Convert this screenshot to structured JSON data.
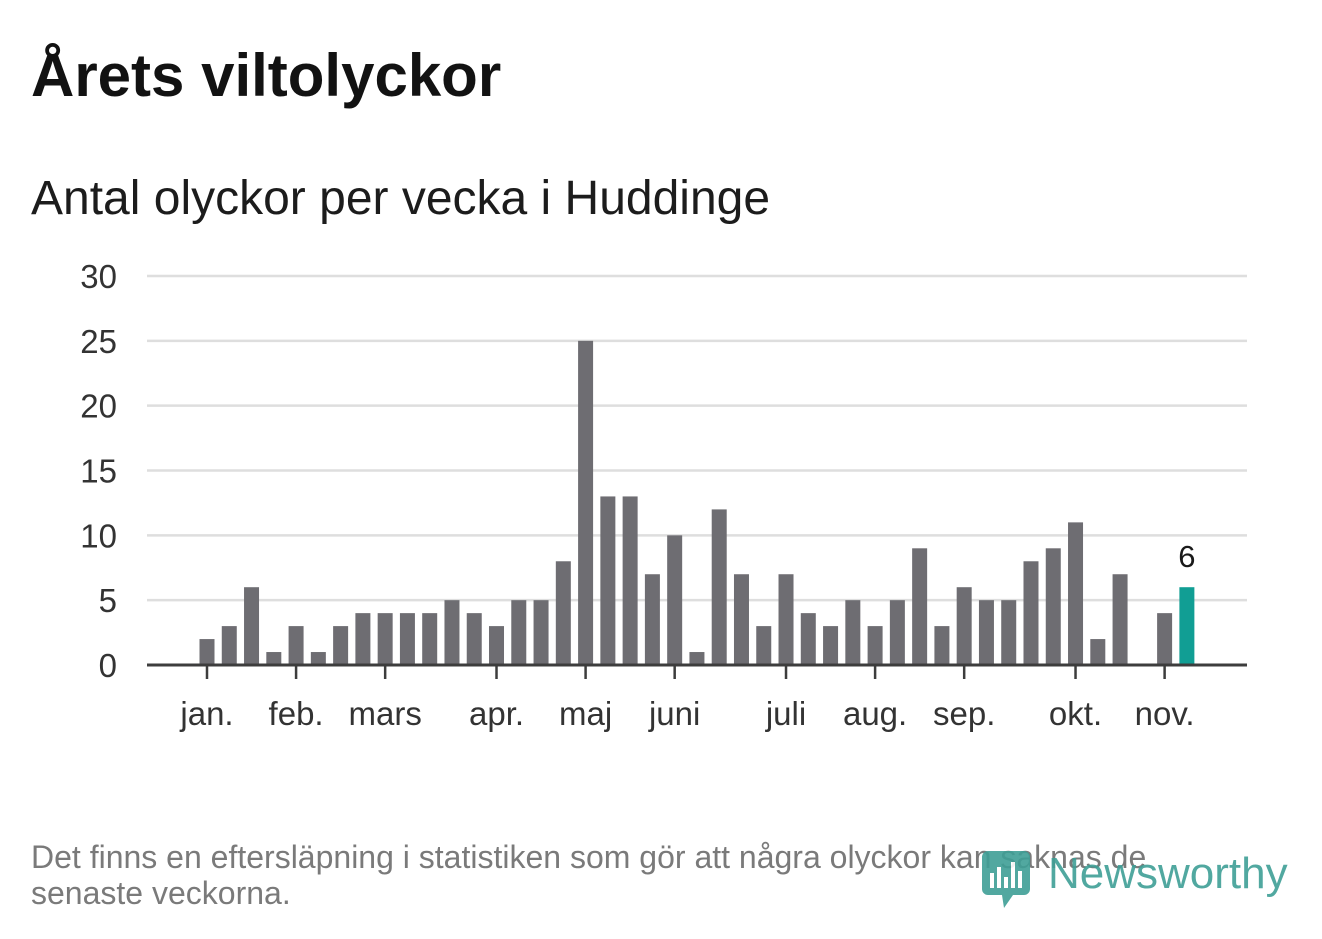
{
  "chart_data": {
    "type": "bar",
    "title": "Årets viltolyckor",
    "subtitle": "Antal olyckor per vecka i Huddinge",
    "x": [
      1,
      2,
      3,
      4,
      5,
      6,
      7,
      8,
      9,
      10,
      11,
      12,
      13,
      14,
      15,
      16,
      17,
      18,
      19,
      20,
      21,
      22,
      23,
      24,
      25,
      26,
      27,
      28,
      29,
      30,
      31,
      32,
      33,
      34,
      35,
      36,
      37,
      38,
      39,
      40,
      41,
      42,
      43,
      44,
      45
    ],
    "values": [
      2,
      3,
      6,
      1,
      3,
      1,
      3,
      4,
      4,
      4,
      4,
      5,
      4,
      3,
      5,
      5,
      8,
      25,
      13,
      13,
      7,
      10,
      1,
      12,
      7,
      3,
      7,
      4,
      3,
      5,
      3,
      5,
      9,
      3,
      6,
      5,
      5,
      8,
      9,
      11,
      2,
      7,
      0,
      4,
      6
    ],
    "ylim": [
      0,
      30
    ],
    "yticks": [
      0,
      5,
      10,
      15,
      20,
      25,
      30
    ],
    "month_ticks": [
      {
        "label": "jan.",
        "week": 1
      },
      {
        "label": "feb.",
        "week": 5
      },
      {
        "label": "mars",
        "week": 9
      },
      {
        "label": "apr.",
        "week": 14
      },
      {
        "label": "maj",
        "week": 18
      },
      {
        "label": "juni",
        "week": 22
      },
      {
        "label": "juli",
        "week": 27
      },
      {
        "label": "aug.",
        "week": 31
      },
      {
        "label": "sep.",
        "week": 35
      },
      {
        "label": "okt.",
        "week": 40
      },
      {
        "label": "nov.",
        "week": 44
      }
    ],
    "highlight": {
      "index": 44,
      "label": "6"
    },
    "grid": true,
    "colors": {
      "bar": "#6e6d72",
      "highlight": "#119e94",
      "grid": "#dedede",
      "axis": "#3d3d3d",
      "tick_text": "#333333"
    }
  },
  "footer": {
    "note": "Det finns en eftersläpning i statistiken som gör att några olyckor kan saknas de senaste veckorna.",
    "logo_text": "Newsworthy",
    "logo_icon": "newsworthy-bar-chart-icon",
    "brand_color": "#3f9f96"
  }
}
